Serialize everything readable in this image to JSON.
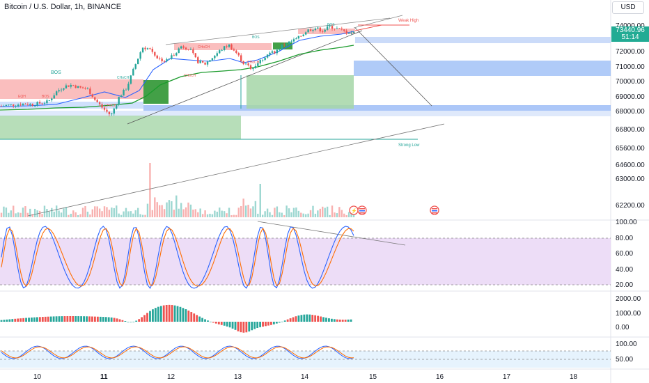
{
  "header": {
    "title": "Bitcoin / U.S. Dollar, 1h, BINANCE",
    "currency": "USD"
  },
  "price_tag": {
    "price": "73440.96",
    "countdown": "51:14"
  },
  "price_axis": [
    "74000.00",
    "73000.00",
    "72000.00",
    "71000.00",
    "70000.00",
    "69000.00",
    "68000.00",
    "66800.00",
    "65600.00",
    "64600.00",
    "63000.00",
    "62200.00"
  ],
  "time_axis": [
    "10",
    "11",
    "12",
    "13",
    "14",
    "15",
    "16",
    "17",
    "18"
  ],
  "indicators": {
    "stoch": [
      "100.00",
      "80.00",
      "60.00",
      "40.00",
      "20.00"
    ],
    "macd": [
      "2000.00",
      "1000.00",
      "0.00"
    ],
    "osc": [
      "100.00",
      "50.00"
    ]
  },
  "annotations": {
    "weak_high": "Weak High",
    "strong_low": "Strong Low",
    "bos": "BOS",
    "choch": "CHoCH",
    "eqh": "EQH"
  },
  "colors": {
    "up": "#26a69a",
    "down": "#ef5350",
    "ma": "#1b9b2c",
    "ema": "#2962ff",
    "stoch_k": "#2962ff",
    "stoch_d": "#ff6d00",
    "stoch_bg": "#e1bee7"
  },
  "chart_data": {
    "type": "candlestick",
    "symbol": "Bitcoin / U.S. Dollar",
    "interval": "1h",
    "exchange": "BINANCE",
    "last_price": 73440.96,
    "price_range": [
      61800,
      74600
    ],
    "x_labels": [
      "10",
      "11",
      "12",
      "13",
      "14",
      "15",
      "16",
      "17",
      "18"
    ],
    "close_path": [
      68200,
      68250,
      68300,
      68350,
      68300,
      68400,
      68500,
      69200,
      69600,
      69700,
      69500,
      69400,
      68600,
      68000,
      67500,
      68800,
      69500,
      71000,
      72400,
      72300,
      71600,
      71400,
      71900,
      72500,
      72300,
      71400,
      71200,
      71700,
      72200,
      72600,
      72000,
      71200,
      70900,
      71400,
      71900,
      72100,
      72600,
      72800,
      73100,
      73600,
      73800,
      73600,
      73900,
      73700,
      73500,
      73440.96
    ]
  }
}
